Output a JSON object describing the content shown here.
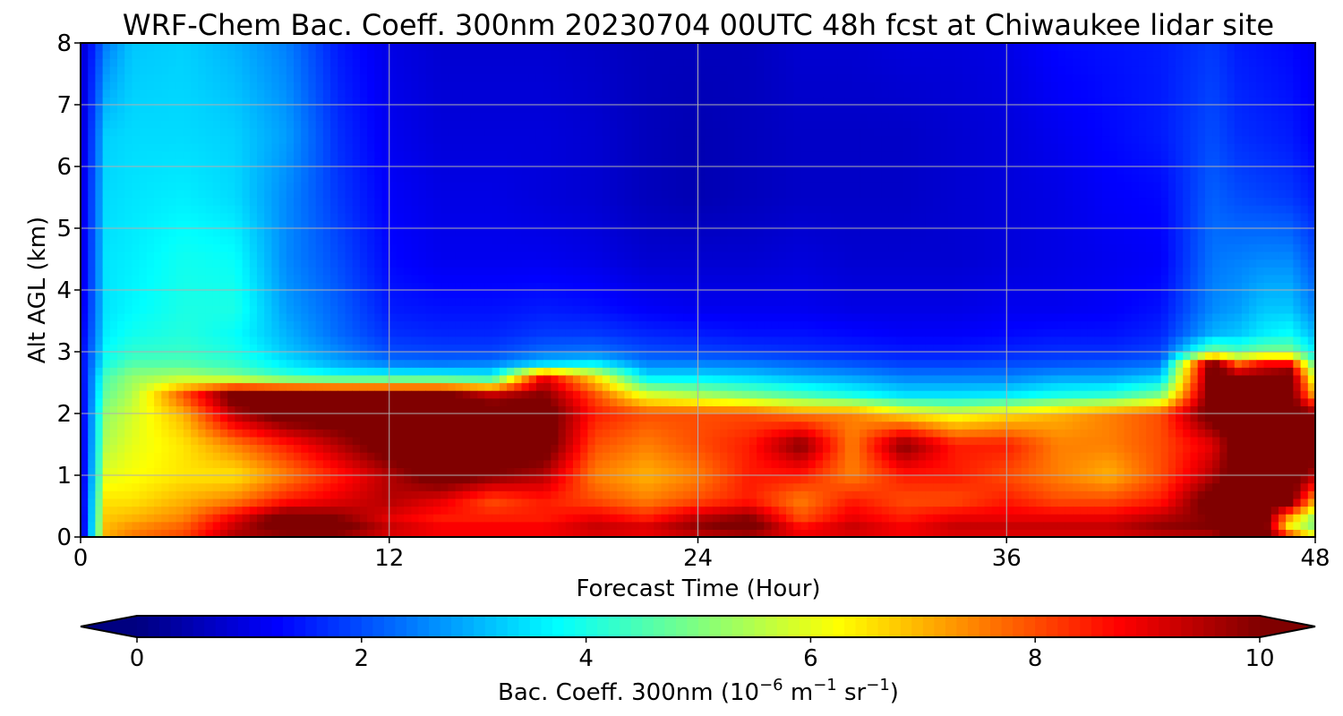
{
  "chart_data": {
    "type": "heatmap",
    "title": "WRF-Chem Bac. Coeff. 300nm  20230704 00UTC 48h fcst at Chiwaukee lidar site",
    "xlabel": "Forecast Time (Hour)",
    "ylabel": "Alt AGL (km)",
    "xlim": [
      0,
      48
    ],
    "ylim": [
      0,
      8
    ],
    "xticks": [
      "0",
      "12",
      "24",
      "36",
      "48"
    ],
    "yticks": [
      "0",
      "1",
      "2",
      "3",
      "4",
      "5",
      "6",
      "7",
      "8"
    ],
    "grid": true,
    "colormap": "jet",
    "colorbar": {
      "label_main": "Bac. Coeff. 300nm  (10",
      "label_exp1": "−6",
      "label_unit1": " m",
      "label_exp2": "−1",
      "label_unit2": " sr",
      "label_exp3": "−1",
      "label_end": ")",
      "ticks": [
        "0",
        "2",
        "4",
        "6",
        "8",
        "10"
      ],
      "range": [
        0,
        10
      ],
      "extend": "both"
    },
    "times": [
      0,
      1,
      2,
      4,
      6,
      8,
      10,
      12,
      14,
      16,
      18,
      20,
      22,
      24,
      26,
      28,
      30,
      32,
      34,
      36,
      38,
      40,
      42,
      44,
      45,
      46,
      47,
      48
    ],
    "heights": [
      0,
      0.1,
      0.3,
      0.6,
      1.0,
      1.5,
      2.0,
      2.3,
      2.6,
      2.8,
      3.0,
      3.3,
      3.7,
      4.5,
      5.5,
      6.5,
      8.0
    ],
    "values": [
      [
        0.5,
        0.5,
        0.5,
        0.6,
        0.6,
        0.7,
        0.8,
        0.9,
        1.0,
        1.1,
        1.1,
        1.0,
        0.9,
        0.8,
        0.8,
        0.7,
        0.7
      ],
      [
        7.0,
        7.0,
        6.8,
        6.5,
        6.0,
        5.5,
        5.2,
        4.8,
        4.5,
        4.0,
        3.8,
        3.6,
        3.5,
        3.5,
        3.4,
        3.3,
        2.5
      ],
      [
        7.5,
        7.5,
        7.0,
        6.5,
        6.2,
        6.0,
        5.8,
        5.5,
        5.2,
        4.6,
        4.2,
        3.9,
        3.7,
        3.6,
        3.5,
        3.4,
        3.2
      ],
      [
        8.0,
        8.0,
        7.5,
        7.0,
        6.5,
        6.5,
        7.0,
        8.0,
        5.5,
        4.6,
        4.3,
        4.1,
        4.0,
        3.9,
        3.6,
        3.4,
        3.3
      ],
      [
        9.5,
        9.5,
        9.0,
        7.5,
        6.5,
        7.5,
        9.5,
        10.5,
        5.0,
        4.3,
        4.0,
        3.8,
        4.0,
        3.8,
        3.4,
        3.3,
        3.0
      ],
      [
        9.0,
        10.5,
        10.5,
        8.5,
        7.5,
        8.5,
        10.5,
        10.5,
        4.3,
        3.6,
        3.2,
        3.0,
        2.8,
        2.6,
        2.6,
        2.8,
        2.5
      ],
      [
        9.0,
        10.5,
        10.0,
        9.0,
        8.5,
        9.5,
        10.5,
        10.5,
        4.0,
        3.0,
        2.6,
        2.3,
        2.2,
        2.0,
        1.8,
        1.7,
        1.5
      ],
      [
        8.5,
        9.5,
        9.0,
        9.5,
        9.5,
        10.5,
        10.5,
        10.5,
        4.0,
        2.6,
        2.0,
        1.7,
        1.5,
        1.3,
        1.2,
        1.1,
        1.0
      ],
      [
        8.5,
        9.0,
        8.5,
        9.0,
        10.5,
        10.5,
        10.5,
        10.5,
        4.0,
        2.5,
        1.9,
        1.6,
        1.4,
        1.1,
        1.0,
        0.9,
        0.8
      ],
      [
        8.5,
        9.0,
        8.5,
        8.0,
        10.0,
        10.5,
        10.5,
        9.5,
        3.8,
        2.6,
        1.9,
        1.6,
        1.4,
        1.1,
        1.0,
        0.9,
        0.8
      ],
      [
        8.5,
        9.0,
        8.5,
        8.5,
        9.5,
        10.5,
        10.5,
        10.0,
        9.0,
        3.5,
        2.3,
        1.8,
        1.5,
        1.1,
        0.9,
        0.9,
        0.8
      ],
      [
        8.5,
        9.5,
        9.0,
        8.0,
        7.5,
        8.0,
        8.5,
        8.0,
        6.5,
        3.8,
        2.4,
        1.8,
        1.4,
        1.0,
        0.8,
        0.8,
        0.7
      ],
      [
        8.0,
        9.5,
        8.5,
        7.5,
        7.0,
        7.5,
        8.0,
        6.0,
        3.5,
        2.6,
        2.0,
        1.6,
        1.2,
        0.8,
        0.6,
        0.6,
        0.6
      ],
      [
        8.5,
        10.0,
        9.5,
        8.0,
        7.5,
        8.0,
        8.0,
        5.5,
        3.5,
        2.6,
        1.9,
        1.5,
        1.1,
        0.8,
        0.5,
        0.5,
        0.6
      ],
      [
        8.5,
        10.5,
        10.0,
        8.5,
        8.5,
        8.5,
        8.0,
        5.0,
        3.3,
        2.5,
        1.8,
        1.4,
        1.1,
        0.8,
        0.6,
        0.6,
        0.6
      ],
      [
        8.5,
        9.0,
        8.0,
        7.5,
        8.5,
        10.0,
        7.5,
        4.5,
        3.0,
        2.3,
        1.7,
        1.4,
        1.1,
        0.9,
        0.7,
        0.7,
        0.8
      ],
      [
        8.5,
        9.5,
        9.0,
        8.5,
        7.5,
        7.5,
        7.5,
        4.0,
        2.8,
        2.1,
        1.6,
        1.3,
        1.0,
        0.8,
        0.7,
        0.7,
        0.8
      ],
      [
        8.5,
        9.0,
        8.5,
        8.0,
        8.5,
        10.0,
        6.5,
        3.5,
        2.5,
        1.9,
        1.5,
        1.2,
        1.0,
        0.8,
        0.7,
        0.7,
        0.9
      ],
      [
        8.5,
        9.5,
        9.0,
        8.0,
        8.5,
        8.5,
        6.0,
        3.5,
        2.5,
        1.9,
        1.5,
        1.2,
        1.0,
        0.8,
        0.8,
        0.8,
        0.9
      ],
      [
        8.5,
        9.5,
        9.0,
        8.5,
        8.0,
        8.5,
        6.5,
        3.6,
        2.5,
        2.0,
        1.6,
        1.3,
        1.1,
        0.9,
        0.9,
        0.9,
        1.0
      ],
      [
        8.5,
        9.5,
        9.0,
        8.0,
        7.5,
        7.5,
        7.0,
        4.0,
        2.8,
        2.1,
        1.7,
        1.4,
        1.1,
        1.0,
        1.0,
        1.1,
        1.3
      ],
      [
        8.5,
        9.5,
        9.0,
        8.0,
        7.0,
        7.5,
        7.5,
        4.2,
        2.8,
        2.2,
        1.7,
        1.4,
        1.2,
        1.1,
        1.2,
        1.3,
        1.4
      ],
      [
        8.5,
        10.0,
        9.5,
        8.5,
        8.0,
        8.0,
        8.0,
        5.0,
        3.2,
        2.4,
        1.9,
        1.6,
        1.4,
        1.2,
        1.3,
        1.5,
        1.5
      ],
      [
        9.0,
        10.0,
        10.0,
        10.5,
        9.5,
        9.0,
        10.5,
        10.5,
        10.5,
        10.5,
        5.0,
        3.0,
        2.6,
        2.4,
        2.2,
        2.0,
        1.8
      ],
      [
        10.5,
        10.5,
        10.5,
        10.5,
        10.5,
        10.5,
        10.5,
        10.5,
        10.0,
        8.0,
        4.5,
        3.2,
        2.8,
        2.5,
        2.0,
        1.7,
        1.5
      ],
      [
        10.5,
        10.5,
        10.5,
        10.5,
        10.5,
        10.5,
        10.5,
        10.5,
        10.0,
        9.0,
        5.0,
        3.6,
        3.2,
        2.6,
        1.9,
        1.6,
        1.4
      ],
      [
        10.5,
        6.0,
        7.0,
        10.5,
        10.5,
        10.5,
        10.5,
        10.5,
        10.5,
        9.0,
        5.0,
        3.8,
        3.2,
        2.6,
        1.8,
        1.5,
        1.3
      ],
      [
        7.0,
        5.0,
        5.0,
        7.0,
        9.5,
        10.5,
        10.0,
        7.0,
        5.5,
        4.5,
        3.6,
        3.0,
        2.5,
        2.0,
        1.5,
        1.2,
        1.1
      ]
    ]
  }
}
